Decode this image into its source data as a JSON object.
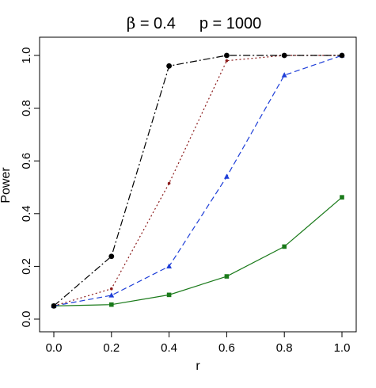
{
  "chart_data": {
    "type": "line",
    "title_parts": {
      "beta_symbol": "β",
      "beta_text": " = 0.4",
      "p_text": "p = 1000"
    },
    "xlabel": "r",
    "ylabel": "Power",
    "xlim": [
      0.0,
      1.0
    ],
    "ylim": [
      0.0,
      1.0
    ],
    "x_ticks": [
      "0.0",
      "0.2",
      "0.4",
      "0.6",
      "0.8",
      "1.0"
    ],
    "y_ticks": [
      "0.0",
      "0.2",
      "0.4",
      "0.6",
      "0.8",
      "1.0"
    ],
    "grid": false,
    "x": [
      0.0,
      0.2,
      0.4,
      0.6,
      0.8,
      1.0
    ],
    "series": [
      {
        "values": [
          0.05,
          0.055,
          0.092,
          0.162,
          0.275,
          0.462
        ],
        "color": "#1a7a1a",
        "line": "solid",
        "marker": "square"
      },
      {
        "values": [
          0.05,
          0.09,
          0.2,
          0.54,
          0.925,
          1.0
        ],
        "color": "#1f3fd8",
        "line": "dashed",
        "marker": "triangle"
      },
      {
        "values": [
          0.05,
          0.115,
          0.515,
          0.98,
          1.0,
          1.0
        ],
        "color": "#8b1a1a",
        "line": "dotted",
        "marker": "small-dot"
      },
      {
        "values": [
          0.05,
          0.238,
          0.96,
          1.0,
          1.0,
          1.0
        ],
        "color": "#000000",
        "line": "dot-dash",
        "marker": "dot"
      }
    ]
  }
}
